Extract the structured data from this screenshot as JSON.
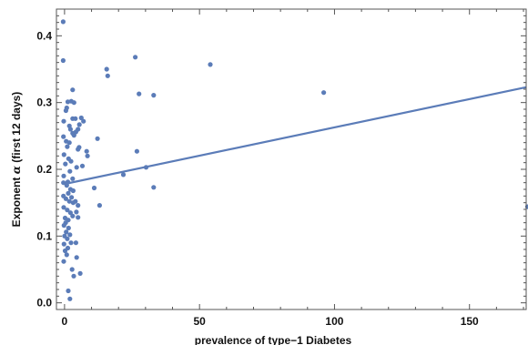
{
  "chart_data": {
    "type": "scatter",
    "title": "",
    "xlabel": "prevalence of type−1 Diabetes",
    "ylabel_prefix": "Exponent ",
    "ylabel_symbol": "α",
    "ylabel_suffix": " (first 12 days)",
    "xlim": [
      -3,
      171
    ],
    "ylim": [
      -0.01,
      0.44
    ],
    "xticks": [
      0,
      50,
      100,
      150
    ],
    "xtick_labels": [
      "0",
      "50",
      "100",
      "150"
    ],
    "yticks": [
      0.0,
      0.1,
      0.2,
      0.3,
      0.4
    ],
    "ytick_labels": [
      "0.0",
      "0.1",
      "0.2",
      "0.3",
      "0.4"
    ],
    "grid": false,
    "frame": true,
    "point_color": "#5b7cb8",
    "line_color": "#5b7cb8",
    "fit_line": {
      "x": [
        0,
        171
      ],
      "y": [
        0.178,
        0.323
      ]
    },
    "points": [
      [
        -0.5,
        0.421
      ],
      [
        -0.5,
        0.363
      ],
      [
        1.2,
        0.301
      ],
      [
        3.0,
        0.319
      ],
      [
        2.5,
        0.302
      ],
      [
        3.5,
        0.3
      ],
      [
        0.8,
        0.292
      ],
      [
        0.5,
        0.288
      ],
      [
        -0.3,
        0.272
      ],
      [
        1.8,
        0.265
      ],
      [
        3.0,
        0.276
      ],
      [
        4.0,
        0.276
      ],
      [
        6.2,
        0.277
      ],
      [
        7.0,
        0.272
      ],
      [
        5.5,
        0.267
      ],
      [
        5.0,
        0.26
      ],
      [
        4.2,
        0.256
      ],
      [
        2.2,
        0.26
      ],
      [
        3.0,
        0.254
      ],
      [
        3.5,
        0.251
      ],
      [
        -0.4,
        0.249
      ],
      [
        0.6,
        0.242
      ],
      [
        1.8,
        0.24
      ],
      [
        1.0,
        0.234
      ],
      [
        5.4,
        0.233
      ],
      [
        5.0,
        0.23
      ],
      [
        8.2,
        0.227
      ],
      [
        8.5,
        0.22
      ],
      [
        -0.2,
        0.222
      ],
      [
        1.5,
        0.216
      ],
      [
        0.3,
        0.208
      ],
      [
        2.4,
        0.212
      ],
      [
        4.5,
        0.203
      ],
      [
        6.6,
        0.205
      ],
      [
        2.0,
        0.197
      ],
      [
        -0.3,
        0.19
      ],
      [
        3.0,
        0.186
      ],
      [
        1.2,
        0.181
      ],
      [
        -0.4,
        0.18
      ],
      [
        0.8,
        0.176
      ],
      [
        2.2,
        0.17
      ],
      [
        3.2,
        0.168
      ],
      [
        1.4,
        0.164
      ],
      [
        2.6,
        0.158
      ],
      [
        -0.4,
        0.16
      ],
      [
        0.5,
        0.156
      ],
      [
        1.8,
        0.152
      ],
      [
        3.2,
        0.15
      ],
      [
        4.0,
        0.152
      ],
      [
        5.0,
        0.146
      ],
      [
        -0.3,
        0.143
      ],
      [
        1.0,
        0.139
      ],
      [
        2.2,
        0.135
      ],
      [
        3.0,
        0.13
      ],
      [
        0.2,
        0.127
      ],
      [
        1.4,
        0.124
      ],
      [
        0.4,
        0.12
      ],
      [
        -0.2,
        0.116
      ],
      [
        1.5,
        0.112
      ],
      [
        0.6,
        0.106
      ],
      [
        2.0,
        0.102
      ],
      [
        0.0,
        0.1
      ],
      [
        1.0,
        0.096
      ],
      [
        2.4,
        0.09
      ],
      [
        -0.2,
        0.088
      ],
      [
        1.2,
        0.082
      ],
      [
        0.2,
        0.078
      ],
      [
        0.8,
        0.072
      ],
      [
        -0.3,
        0.062
      ],
      [
        2.8,
        0.05
      ],
      [
        3.4,
        0.04
      ],
      [
        4.2,
        0.09
      ],
      [
        4.4,
        0.136
      ],
      [
        5.0,
        0.128
      ],
      [
        4.5,
        0.068
      ],
      [
        5.8,
        0.044
      ],
      [
        1.4,
        0.018
      ],
      [
        2.0,
        0.006
      ],
      [
        11.0,
        0.172
      ],
      [
        12.2,
        0.246
      ],
      [
        13.0,
        0.146
      ],
      [
        15.6,
        0.35
      ],
      [
        16.0,
        0.34
      ],
      [
        21.8,
        0.192
      ],
      [
        26.2,
        0.368
      ],
      [
        26.8,
        0.227
      ],
      [
        27.6,
        0.313
      ],
      [
        30.2,
        0.203
      ],
      [
        33.0,
        0.311
      ],
      [
        33.0,
        0.173
      ],
      [
        54.0,
        0.357
      ],
      [
        96.0,
        0.315
      ],
      [
        171.5,
        0.144
      ]
    ]
  }
}
